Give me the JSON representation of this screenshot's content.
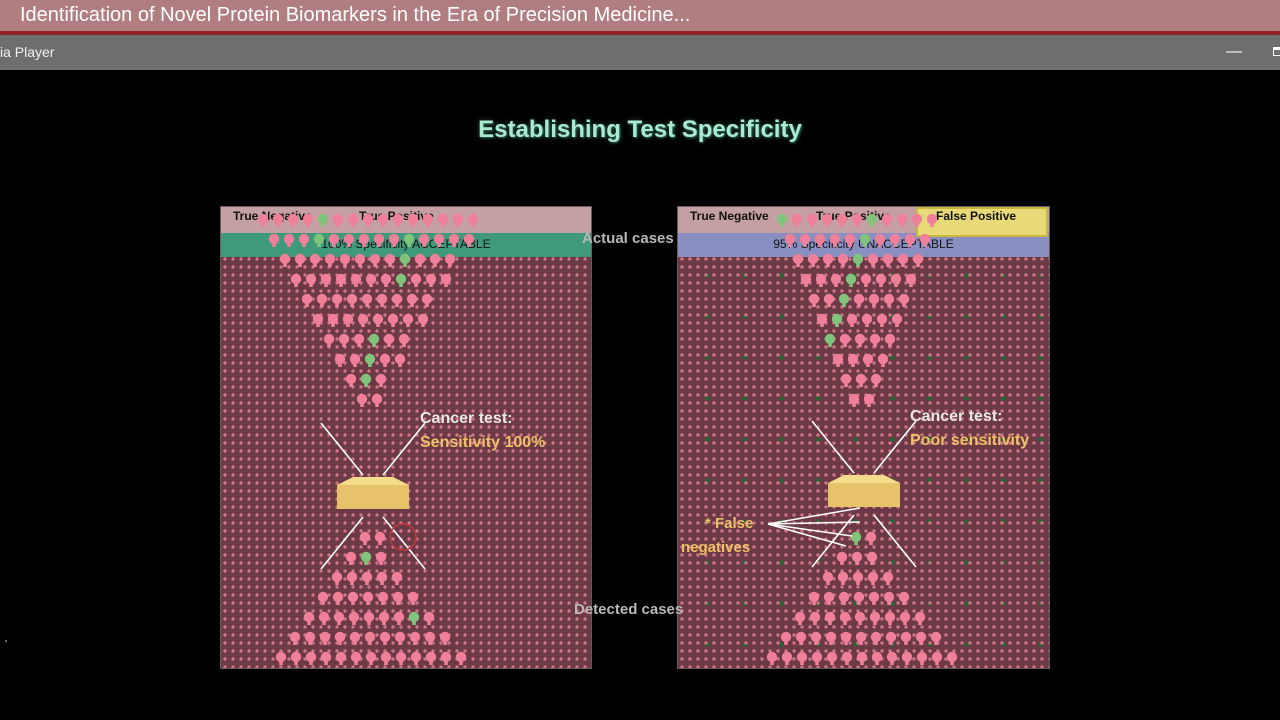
{
  "window": {
    "title": "Identification of Novel Protein Biomarkers in the Era of Precision Medicine...",
    "player_name": "ia Player",
    "minimize_icon": "minimize-icon",
    "maximize_icon": "maximize-icon"
  },
  "slide": {
    "title": "Establishing Test Specificity",
    "actual_cases_label": "Actual cases",
    "detected_cases_label": "Detected cases",
    "left_panel": {
      "true_negative": "True Negative",
      "true_positive": "True Positive",
      "specificity": "100% Specificity ACCEPTABLE",
      "test_title": "Cancer test:",
      "test_value": "Sensitivity 100%"
    },
    "right_panel": {
      "true_negative": "True Negative",
      "true_positive": "True Positive",
      "false_positive": "False Positive",
      "specificity": "95% Specificity UNACCEPTABLE",
      "test_title": "Cancer test:",
      "test_value": "Poor sensitivity",
      "false_negatives": [
        "* False",
        "negatives"
      ]
    },
    "colors": {
      "title": "#a9ead0",
      "specificity_acceptable_band": "#3f9a7b",
      "specificity_unacceptable_band": "#8a8fc2",
      "false_positive_box": "#e8d979",
      "test_box": "#e8c26a",
      "person_pink": "#f07f9a",
      "person_green": "#7fc47a"
    }
  }
}
